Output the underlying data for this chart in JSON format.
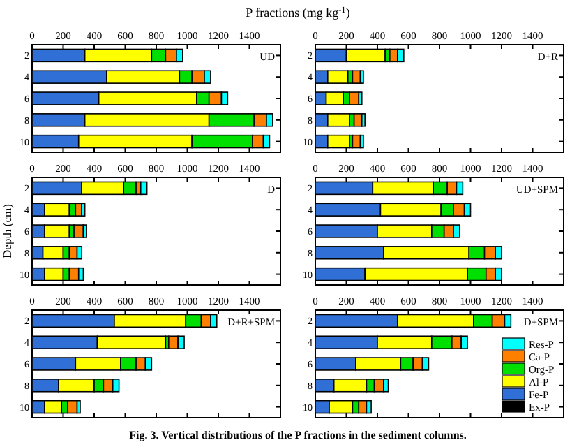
{
  "chart_data": [
    {
      "type": "bar",
      "orientation": "horizontal",
      "stacked": true,
      "title": "UD",
      "xlabel": "P fractions (mg kg$^{-1}$)",
      "categories": [
        "2",
        "4",
        "6",
        "8",
        "10"
      ],
      "xlim": [
        0,
        1600
      ],
      "xticks": [
        0,
        200,
        400,
        600,
        800,
        1000,
        1200,
        1400
      ],
      "legend": false,
      "series": [
        {
          "color": "#000000",
          "values": [
            0,
            0,
            0,
            0,
            0
          ]
        },
        {
          "color": "#2f6fd6",
          "values": [
            340,
            480,
            430,
            340,
            300
          ]
        },
        {
          "color": "#ffff00",
          "values": [
            430,
            470,
            630,
            800,
            730
          ]
        },
        {
          "color": "#00e000",
          "values": [
            90,
            80,
            80,
            290,
            390
          ]
        },
        {
          "color": "#ff7f00",
          "values": [
            70,
            80,
            80,
            80,
            70
          ]
        },
        {
          "color": "#00ffff",
          "values": [
            40,
            40,
            40,
            40,
            40
          ]
        }
      ]
    },
    {
      "type": "bar",
      "orientation": "horizontal",
      "stacked": true,
      "title": "D+R",
      "categories": [
        "2",
        "4",
        "6",
        "8",
        "10"
      ],
      "xlim": [
        0,
        1600
      ],
      "xticks": [
        0,
        200,
        400,
        600,
        800,
        1000,
        1200,
        1400
      ],
      "legend": false,
      "series": [
        {
          "color": "#000000",
          "values": [
            0,
            0,
            0,
            0,
            0
          ]
        },
        {
          "color": "#2f6fd6",
          "values": [
            200,
            80,
            70,
            80,
            80
          ]
        },
        {
          "color": "#ffff00",
          "values": [
            250,
            130,
            110,
            140,
            140
          ]
        },
        {
          "color": "#00e000",
          "values": [
            30,
            30,
            40,
            30,
            20
          ]
        },
        {
          "color": "#ff7f00",
          "values": [
            50,
            50,
            60,
            50,
            50
          ]
        },
        {
          "color": "#00ffff",
          "values": [
            40,
            20,
            20,
            20,
            20
          ]
        }
      ]
    },
    {
      "type": "bar",
      "orientation": "horizontal",
      "stacked": true,
      "title": "D",
      "ylabel": "Depth (cm)",
      "categories": [
        "2",
        "4",
        "6",
        "8",
        "10"
      ],
      "xlim": [
        0,
        1600
      ],
      "xticks": [
        0,
        200,
        400,
        600,
        800,
        1000,
        1200,
        1400
      ],
      "legend": false,
      "series": [
        {
          "color": "#000000",
          "values": [
            0,
            0,
            0,
            0,
            0
          ]
        },
        {
          "color": "#2f6fd6",
          "values": [
            320,
            80,
            80,
            70,
            80
          ]
        },
        {
          "color": "#ffff00",
          "values": [
            270,
            160,
            160,
            130,
            120
          ]
        },
        {
          "color": "#00e000",
          "values": [
            80,
            40,
            30,
            40,
            40
          ]
        },
        {
          "color": "#ff7f00",
          "values": [
            30,
            40,
            60,
            50,
            60
          ]
        },
        {
          "color": "#00ffff",
          "values": [
            40,
            20,
            20,
            30,
            30
          ]
        }
      ]
    },
    {
      "type": "bar",
      "orientation": "horizontal",
      "stacked": true,
      "title": "UD+SPM",
      "categories": [
        "2",
        "4",
        "6",
        "8",
        "10"
      ],
      "xlim": [
        0,
        1600
      ],
      "xticks": [
        0,
        200,
        400,
        600,
        800,
        1000,
        1200,
        1400
      ],
      "legend": false,
      "series": [
        {
          "color": "#000000",
          "values": [
            0,
            0,
            0,
            0,
            0
          ]
        },
        {
          "color": "#2f6fd6",
          "values": [
            370,
            420,
            400,
            440,
            320
          ]
        },
        {
          "color": "#ffff00",
          "values": [
            390,
            390,
            350,
            550,
            660
          ]
        },
        {
          "color": "#00e000",
          "values": [
            90,
            80,
            80,
            100,
            120
          ]
        },
        {
          "color": "#ff7f00",
          "values": [
            60,
            70,
            60,
            70,
            60
          ]
        },
        {
          "color": "#00ffff",
          "values": [
            40,
            40,
            40,
            40,
            40
          ]
        }
      ]
    },
    {
      "type": "bar",
      "orientation": "horizontal",
      "stacked": true,
      "title": "D+R+SPM",
      "categories": [
        "2",
        "4",
        "6",
        "8",
        "10"
      ],
      "xlim": [
        0,
        1600
      ],
      "xticks": [
        0,
        200,
        400,
        600,
        800,
        1000,
        1200,
        1400
      ],
      "legend": false,
      "series": [
        {
          "color": "#000000",
          "values": [
            0,
            0,
            0,
            0,
            0
          ]
        },
        {
          "color": "#2f6fd6",
          "values": [
            530,
            420,
            280,
            170,
            80
          ]
        },
        {
          "color": "#ffff00",
          "values": [
            460,
            440,
            290,
            230,
            110
          ]
        },
        {
          "color": "#00e000",
          "values": [
            100,
            20,
            100,
            60,
            40
          ]
        },
        {
          "color": "#ff7f00",
          "values": [
            60,
            60,
            60,
            60,
            60
          ]
        },
        {
          "color": "#00ffff",
          "values": [
            40,
            40,
            40,
            40,
            20
          ]
        }
      ]
    },
    {
      "type": "bar",
      "orientation": "horizontal",
      "stacked": true,
      "title": "D+SPM",
      "annotations": [
        "Fig. 3.  Vertical distributions of the P fractions in the sediment columns."
      ],
      "categories": [
        "2",
        "4",
        "6",
        "8",
        "10"
      ],
      "xlim": [
        0,
        1600
      ],
      "xticks": [
        0,
        200,
        400,
        600,
        800,
        1000,
        1200,
        1400
      ],
      "legend": "bottom right",
      "series": [
        {
          "name": "Ex-P",
          "color": "#000000",
          "values": [
            0,
            0,
            0,
            0,
            0
          ]
        },
        {
          "name": "Fe-P",
          "color": "#2f6fd6",
          "values": [
            530,
            400,
            260,
            120,
            90
          ]
        },
        {
          "name": "Al-P",
          "color": "#ffff00",
          "values": [
            490,
            350,
            290,
            210,
            150
          ]
        },
        {
          "name": "Org-P",
          "color": "#00e000",
          "values": [
            120,
            130,
            80,
            50,
            40
          ]
        },
        {
          "name": "Ca-P",
          "color": "#ff7f00",
          "values": [
            80,
            60,
            60,
            60,
            50
          ]
        },
        {
          "name": "Res-P",
          "color": "#00ffff",
          "values": [
            40,
            40,
            40,
            30,
            30
          ]
        }
      ]
    }
  ]
}
